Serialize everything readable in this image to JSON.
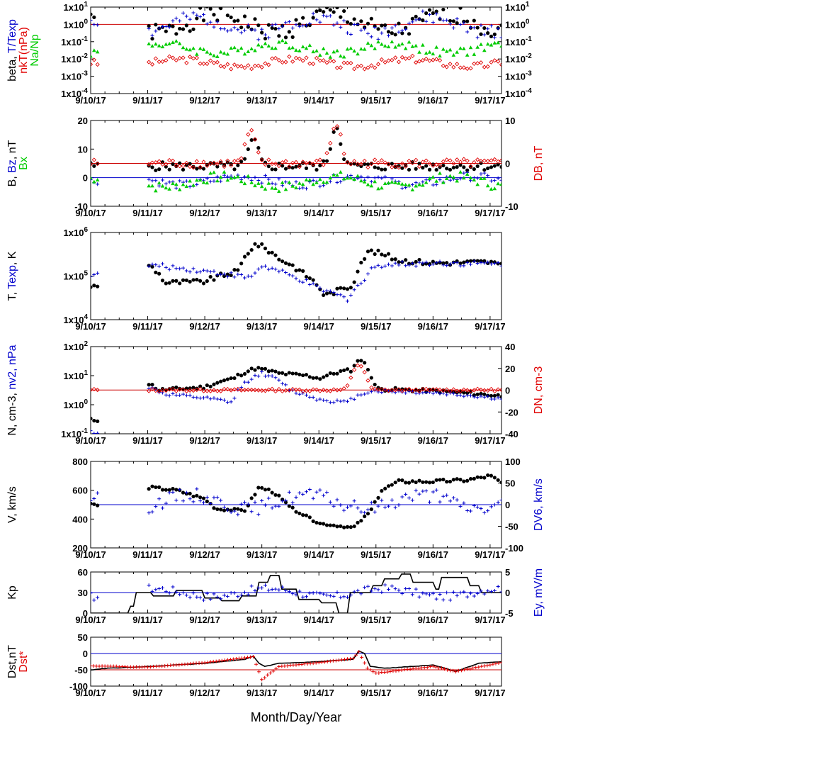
{
  "chart_data": [
    {
      "type": "scatter",
      "panel": "plasma-beta",
      "y_scale": "log",
      "ylim": [
        0.0001,
        10
      ],
      "y_ticks": [
        "1x10-4",
        "1x10-3",
        "1x10-2",
        "1x10-1",
        "1x100",
        "1x101"
      ],
      "ylabel_left": [
        {
          "text": "beta, ",
          "color": "#000000"
        },
        {
          "text": "T/Texp",
          "color": "#0000cc"
        }
      ],
      "ylabel_left2": [
        {
          "text": "nkT(nPa)",
          "color": "#e00000"
        }
      ],
      "ylabel_left3": [
        {
          "text": "Na/Np",
          "color": "#00cc00"
        }
      ],
      "ref_lines": [
        {
          "y": 1,
          "color": "#cc0000"
        }
      ],
      "series": [
        {
          "name": "beta",
          "color": "#000000",
          "marker": "dot",
          "mode": "wave",
          "base": 1.2,
          "amp": 0.9,
          "log": true,
          "seed": 1
        },
        {
          "name": "T/Texp",
          "color": "#0000cc",
          "marker": "plus",
          "mode": "wave",
          "base": 0.9,
          "amp": 0.7,
          "log": true,
          "seed": 2
        },
        {
          "name": "nkT(nPa)",
          "color": "#e00000",
          "marker": "diamond",
          "mode": "wave",
          "base": 0.006,
          "amp": 0.35,
          "log": true,
          "seed": 3
        },
        {
          "name": "Na/Np",
          "color": "#00cc00",
          "marker": "triangle",
          "mode": "wave",
          "base": 0.04,
          "amp": 0.45,
          "log": true,
          "seed": 4
        }
      ]
    },
    {
      "type": "scatter",
      "panel": "magnetic-field",
      "ylim": [
        -10,
        20
      ],
      "y_ticks": [
        "-10",
        "0",
        "10",
        "20"
      ],
      "ylim_right": [
        -10,
        10
      ],
      "y_ticks_right": [
        "-10",
        "0",
        "10"
      ],
      "ylabel_left": [
        {
          "text": "B, ",
          "color": "#000000"
        },
        {
          "text": "Bz",
          "color": "#0000cc"
        },
        {
          "text": ", nT",
          "color": "#000000"
        }
      ],
      "ylabel_left2": [
        {
          "text": "Bx",
          "color": "#00cc00"
        }
      ],
      "ylabel_right": [
        {
          "text": "DB, nT",
          "color": "#e00000"
        }
      ],
      "ref_lines": [
        {
          "y": 0,
          "color": "#0000cc"
        },
        {
          "y": 5,
          "color": "#cc0000"
        }
      ],
      "series": [
        {
          "name": "B",
          "color": "#000000",
          "marker": "dot",
          "mode": "bump",
          "base": 4,
          "amp": 1.5,
          "peaks": [
            [
              2.85,
              9
            ],
            [
              4.3,
              14
            ]
          ],
          "seed": 5
        },
        {
          "name": "Bz",
          "color": "#0000cc",
          "marker": "plus",
          "mode": "wave",
          "base": -1,
          "amp": 2.5,
          "seed": 6
        },
        {
          "name": "Bx",
          "color": "#00cc00",
          "marker": "triangle",
          "mode": "wave",
          "base": -1.5,
          "amp": 3,
          "seed": 7
        },
        {
          "name": "DB",
          "color": "#e00000",
          "marker": "diamond",
          "mode": "bump",
          "base": 5,
          "amp": 1.5,
          "peaks": [
            [
              2.8,
              11
            ],
            [
              4.3,
              14
            ]
          ],
          "seed": 8
        }
      ]
    },
    {
      "type": "scatter",
      "panel": "temperature",
      "y_scale": "log",
      "ylim": [
        10000,
        1000000
      ],
      "y_ticks": [
        "1x104",
        "1x105",
        "1x106"
      ],
      "ylabel_left": [
        {
          "text": "T, ",
          "color": "#000000"
        },
        {
          "text": "Texp",
          "color": "#0000cc"
        },
        {
          "text": ", K",
          "color": "#000000"
        }
      ],
      "series": [
        {
          "name": "T",
          "color": "#000000",
          "marker": "dot",
          "mode": "profile",
          "log": true,
          "profile": [
            [
              0.0,
              60000
            ],
            [
              0.12,
              55000
            ],
            [
              1.0,
              190000
            ],
            [
              1.3,
              70000
            ],
            [
              2.0,
              75000
            ],
            [
              2.6,
              130000
            ],
            [
              2.9,
              550000
            ],
            [
              3.3,
              250000
            ],
            [
              3.7,
              120000
            ],
            [
              4.1,
              35000
            ],
            [
              4.6,
              60000
            ],
            [
              4.9,
              380000
            ],
            [
              5.4,
              230000
            ],
            [
              6.0,
              200000
            ],
            [
              7.0,
              210000
            ],
            [
              7.2,
              170000
            ]
          ],
          "seed": 9
        },
        {
          "name": "Texp",
          "color": "#0000cc",
          "marker": "plus",
          "mode": "profile",
          "log": true,
          "profile": [
            [
              0.0,
              110000
            ],
            [
              0.12,
              105000
            ],
            [
              1.0,
              180000
            ],
            [
              2.0,
              130000
            ],
            [
              2.8,
              90000
            ],
            [
              3.0,
              170000
            ],
            [
              3.5,
              100000
            ],
            [
              4.0,
              50000
            ],
            [
              4.5,
              30000
            ],
            [
              4.8,
              80000
            ],
            [
              5.0,
              180000
            ],
            [
              6.0,
              200000
            ],
            [
              7.2,
              190000
            ]
          ],
          "seed": 10
        }
      ]
    },
    {
      "type": "scatter",
      "panel": "density",
      "y_scale": "log",
      "ylim": [
        0.1,
        100
      ],
      "y_ticks": [
        "1x10-1",
        "1x100",
        "1x101",
        "1x102"
      ],
      "ylim_right": [
        -40,
        40
      ],
      "y_ticks_right": [
        "-40",
        "-20",
        "0",
        "20",
        "40"
      ],
      "ylabel_left": [
        {
          "text": "N, cm-3, ",
          "color": "#000000"
        },
        {
          "text": "nv2, nPa",
          "color": "#0000cc"
        }
      ],
      "ylabel_right": [
        {
          "text": "DN, cm-3",
          "color": "#e00000"
        }
      ],
      "ref_lines": [
        {
          "y": 3.2,
          "color": "#cc0000"
        }
      ],
      "series": [
        {
          "name": "N",
          "color": "#000000",
          "marker": "dot",
          "mode": "profile",
          "log": true,
          "profile": [
            [
              0.0,
              0.3
            ],
            [
              0.12,
              0.3
            ],
            [
              1.0,
              5.5
            ],
            [
              1.2,
              3.2
            ],
            [
              2.0,
              4
            ],
            [
              2.5,
              8
            ],
            [
              2.9,
              18
            ],
            [
              3.3,
              12
            ],
            [
              3.8,
              10
            ],
            [
              4.0,
              8
            ],
            [
              4.4,
              14
            ],
            [
              4.6,
              16
            ],
            [
              4.7,
              40
            ],
            [
              4.9,
              11
            ],
            [
              5.0,
              3.5
            ],
            [
              6.0,
              3
            ],
            [
              7.2,
              2
            ]
          ],
          "seed": 11
        },
        {
          "name": "nv2",
          "color": "#0000cc",
          "marker": "plus",
          "mode": "profile",
          "log": true,
          "profile": [
            [
              0.0,
              0.12
            ],
            [
              0.12,
              0.11
            ],
            [
              1.0,
              4
            ],
            [
              1.3,
              2.3
            ],
            [
              2.5,
              1.2
            ],
            [
              3.0,
              12
            ],
            [
              3.5,
              3
            ],
            [
              4.0,
              1.5
            ],
            [
              4.5,
              1.2
            ],
            [
              4.9,
              3
            ],
            [
              6.0,
              2.6
            ],
            [
              7.2,
              1.6
            ]
          ],
          "seed": 12
        },
        {
          "name": "DN",
          "color": "#e00000",
          "marker": "diamond",
          "mode": "bump",
          "log": true,
          "base": 3.2,
          "amp": 0.3,
          "peaks": [
            [
              4.7,
              20
            ]
          ],
          "seed": 13
        }
      ]
    },
    {
      "type": "scatter",
      "panel": "velocity",
      "ylim": [
        200,
        800
      ],
      "y_ticks": [
        "200",
        "400",
        "600",
        "800"
      ],
      "ylim_right": [
        -100,
        100
      ],
      "y_ticks_right": [
        "-100",
        "-50",
        "0",
        "50",
        "100"
      ],
      "ylabel_left": [
        {
          "text": "V, km/s",
          "color": "#000000"
        }
      ],
      "ylabel_right": [
        {
          "text": "DV6, km/s",
          "color": "#0000cc"
        }
      ],
      "ref_lines": [
        {
          "y": 500,
          "color": "#0000cc"
        }
      ],
      "series": [
        {
          "name": "V",
          "color": "#000000",
          "marker": "dot",
          "mode": "profile",
          "profile": [
            [
              0.0,
              510
            ],
            [
              0.12,
              490
            ],
            [
              1.0,
              620
            ],
            [
              1.5,
              600
            ],
            [
              2.0,
              540
            ],
            [
              2.2,
              470
            ],
            [
              2.7,
              460
            ],
            [
              2.95,
              620
            ],
            [
              3.2,
              590
            ],
            [
              3.5,
              480
            ],
            [
              4.0,
              370
            ],
            [
              4.6,
              340
            ],
            [
              4.9,
              450
            ],
            [
              5.1,
              600
            ],
            [
              5.4,
              660
            ],
            [
              6.0,
              660
            ],
            [
              6.6,
              670
            ],
            [
              7.0,
              700
            ],
            [
              7.2,
              650
            ]
          ],
          "seed": 14
        },
        {
          "name": "DV6",
          "color": "#0000cc",
          "marker": "plus",
          "mode": "wave",
          "base": 520,
          "amp": 80,
          "seed": 15
        }
      ]
    },
    {
      "type": "line",
      "panel": "kp",
      "ylim": [
        0,
        60
      ],
      "y_ticks": [
        "0",
        "30",
        "60"
      ],
      "ylim_right": [
        -5,
        5
      ],
      "y_ticks_right": [
        "-5",
        "0",
        "5"
      ],
      "ylabel_left": [
        {
          "text": "Kp",
          "color": "#000000"
        }
      ],
      "ylabel_right": [
        {
          "text": "Ey,  mV/m",
          "color": "#0000cc"
        }
      ],
      "ref_lines": [
        {
          "y": 30,
          "color": "#0000cc"
        }
      ],
      "series": [
        {
          "name": "Kp",
          "color": "#000000",
          "marker": "line",
          "mode": "step",
          "profile": [
            [
              0.0,
              0
            ],
            [
              0.4,
              0
            ],
            [
              0.7,
              10
            ],
            [
              0.8,
              30
            ],
            [
              1.1,
              25
            ],
            [
              1.5,
              33
            ],
            [
              2.0,
              22
            ],
            [
              2.3,
              18
            ],
            [
              2.6,
              25
            ],
            [
              2.9,
              45
            ],
            [
              3.1,
              55
            ],
            [
              3.3,
              35
            ],
            [
              3.6,
              20
            ],
            [
              4.0,
              15
            ],
            [
              4.3,
              0
            ],
            [
              4.5,
              30
            ],
            [
              4.9,
              40
            ],
            [
              5.1,
              50
            ],
            [
              5.4,
              57
            ],
            [
              5.6,
              45
            ],
            [
              6.0,
              35
            ],
            [
              6.1,
              52
            ],
            [
              6.6,
              40
            ],
            [
              6.8,
              30
            ],
            [
              7.2,
              35
            ]
          ],
          "seed": 16
        },
        {
          "name": "Ey",
          "color": "#0000cc",
          "marker": "plus",
          "mode": "wave",
          "base": 30,
          "amp": 10,
          "seed": 17
        }
      ]
    },
    {
      "type": "line",
      "panel": "dst",
      "ylim": [
        -100,
        50
      ],
      "y_ticks": [
        "-100",
        "-50",
        "0",
        "50"
      ],
      "ylabel_left": [
        {
          "text": "Dst,nT",
          "color": "#000000"
        }
      ],
      "ylabel_left2": [
        {
          "text": "Dst*",
          "color": "#e00000"
        }
      ],
      "ref_lines": [
        {
          "y": 0,
          "color": "#0000cc"
        },
        {
          "y": -50,
          "color": "#cc0000"
        }
      ],
      "series": [
        {
          "name": "Dst",
          "color": "#000000",
          "marker": "line",
          "mode": "profile",
          "profile": [
            [
              0.0,
              -50
            ],
            [
              0.3,
              -45
            ],
            [
              1.0,
              -40
            ],
            [
              2.0,
              -30
            ],
            [
              2.7,
              -18
            ],
            [
              2.85,
              -8
            ],
            [
              2.95,
              -30
            ],
            [
              3.05,
              -40
            ],
            [
              3.3,
              -30
            ],
            [
              4.0,
              -25
            ],
            [
              4.6,
              -18
            ],
            [
              4.7,
              8
            ],
            [
              4.8,
              0
            ],
            [
              4.9,
              -40
            ],
            [
              5.2,
              -45
            ],
            [
              6.0,
              -35
            ],
            [
              6.4,
              -55
            ],
            [
              6.8,
              -30
            ],
            [
              7.2,
              -25
            ]
          ],
          "seed": 18
        },
        {
          "name": "Dst*",
          "color": "#e00000",
          "marker": "plus",
          "mode": "profile",
          "profile": [
            [
              0.0,
              -38
            ],
            [
              1.0,
              -42
            ],
            [
              2.0,
              -28
            ],
            [
              2.85,
              -10
            ],
            [
              3.0,
              -80
            ],
            [
              3.3,
              -40
            ],
            [
              4.0,
              -28
            ],
            [
              4.6,
              -15
            ],
            [
              4.7,
              5
            ],
            [
              4.85,
              -45
            ],
            [
              5.0,
              -60
            ],
            [
              6.0,
              -40
            ],
            [
              6.4,
              -55
            ],
            [
              7.2,
              -28
            ]
          ],
          "seed": 19
        }
      ]
    }
  ],
  "x_ticks": [
    "9/10/17",
    "9/11/17",
    "9/12/17",
    "9/13/17",
    "9/14/17",
    "9/15/17",
    "9/16/17",
    "9/17/17"
  ],
  "xlabel": "Month/Day/Year"
}
